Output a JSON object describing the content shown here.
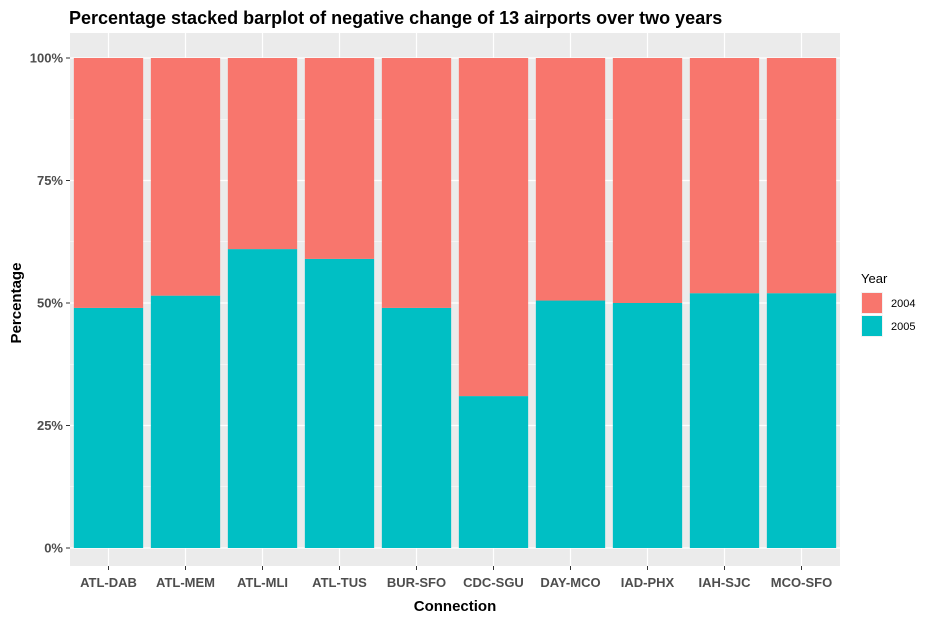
{
  "chart_data": {
    "type": "bar",
    "stacked": true,
    "percent": true,
    "title": "Percentage stacked barplot of negative change of 13 airports over two years",
    "xlabel": "Connection",
    "ylabel": "Percentage",
    "ylim": [
      0,
      1
    ],
    "yticks": [
      "0%",
      "25%",
      "50%",
      "75%",
      "100%"
    ],
    "grid": true,
    "legend_position": "right",
    "legend_title": "Year",
    "categories": [
      "ATL-DAB",
      "ATL-MEM",
      "ATL-MLI",
      "ATL-TUS",
      "BUR-SFO",
      "CDC-SGU",
      "DAY-MCO",
      "IAD-PHX",
      "IAH-SJC",
      "MCO-SFO"
    ],
    "series": [
      {
        "name": "2004",
        "color": "#F8766D",
        "values": [
          0.51,
          0.485,
          0.39,
          0.41,
          0.51,
          0.69,
          0.495,
          0.5,
          0.48,
          0.48
        ]
      },
      {
        "name": "2005",
        "color": "#00BFC4",
        "values": [
          0.49,
          0.515,
          0.61,
          0.59,
          0.49,
          0.31,
          0.505,
          0.5,
          0.52,
          0.52
        ]
      }
    ]
  }
}
